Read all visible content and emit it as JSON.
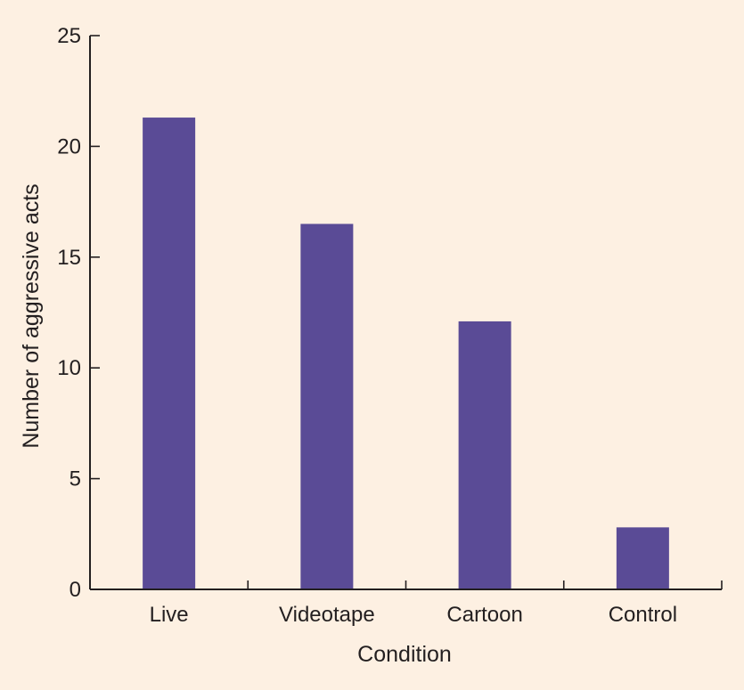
{
  "chart_data": {
    "type": "bar",
    "title": "",
    "xlabel": "Condition",
    "ylabel": "Number of aggressive acts",
    "categories": [
      "Live",
      "Videotape",
      "Cartoon",
      "Control"
    ],
    "values": [
      21.3,
      16.5,
      12.1,
      2.8
    ],
    "ylim": [
      0,
      25
    ],
    "yticks": [
      0,
      5,
      10,
      15,
      20,
      25
    ],
    "grid": false,
    "legend": "none",
    "bar_color": "#5a4b96",
    "background_color": "#fdf0e2",
    "axis_color": "#231f20"
  }
}
